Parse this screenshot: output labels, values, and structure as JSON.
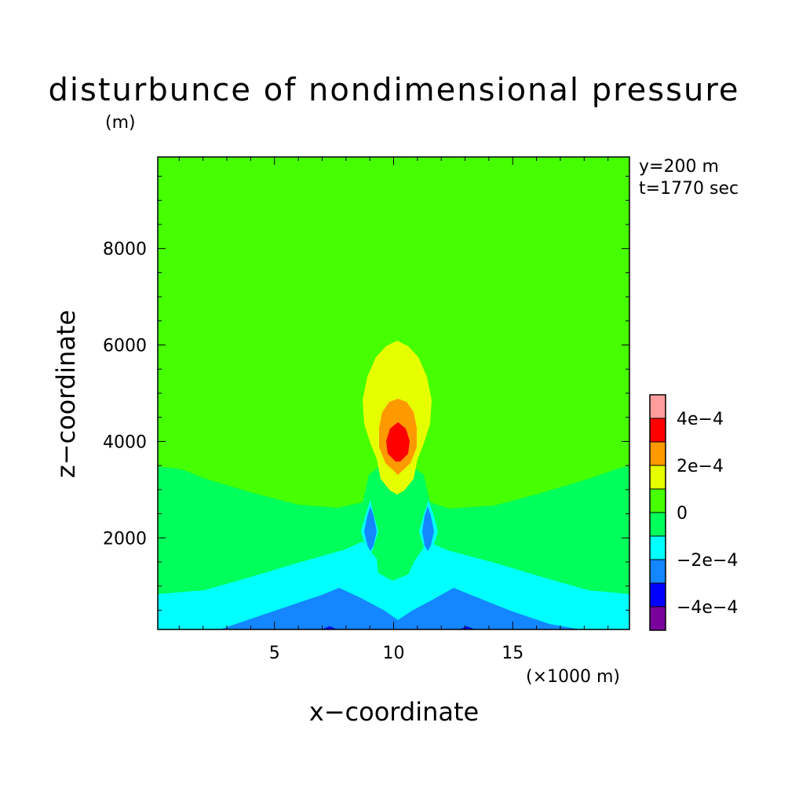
{
  "chart_data": {
    "type": "heatmap",
    "title": "disturbunce of nondimensional pressure",
    "ylabel": "z−coordinate",
    "yunit": "(m)",
    "xlabel": "x−coordinate",
    "xunit": "(×1000 m)",
    "annotations": [
      "y=200 m",
      "t=1770 sec"
    ],
    "xlim": [
      0.1,
      19.9
    ],
    "ylim": [
      100,
      9900
    ],
    "xticks": [
      5,
      10,
      15
    ],
    "xtick_labels": [
      "5",
      "10",
      "15"
    ],
    "yticks": [
      2000,
      4000,
      6000,
      8000
    ],
    "ytick_labels": [
      "2000",
      "4000",
      "6000",
      "8000"
    ],
    "colorbar": {
      "levels": [
        -0.0005,
        -0.0004,
        -0.0003,
        -0.0002,
        -0.0001,
        0,
        0.0001,
        0.0002,
        0.0003,
        0.0004,
        0.0005
      ],
      "labels": [
        "−4e−4",
        "−2e−4",
        "0",
        "2e−4",
        "4e−4"
      ],
      "label_values": [
        -0.0004,
        -0.0002,
        0,
        0.0002,
        0.0004
      ],
      "colors": [
        "#7a009c",
        "#0000ff",
        "#1486ff",
        "#00ffff",
        "#00ff5a",
        "#46ff00",
        "#e6ff00",
        "#ff9900",
        "#ff0000",
        "#ff9c9c"
      ]
    },
    "features": [
      {
        "name": "positive maximum",
        "x": 10.1,
        "z": 3950,
        "value": 0.00035
      },
      {
        "name": "negative minimum (left)",
        "x": 9.0,
        "z": 2450,
        "value": -0.00025
      },
      {
        "name": "negative minimum (right)",
        "x": 11.3,
        "z": 2450,
        "value": -0.00025
      },
      {
        "name": "surface minimum (left)",
        "x": 7.5,
        "z": 100,
        "value": -0.00042
      },
      {
        "name": "surface minimum (right)",
        "x": 13.0,
        "z": 100,
        "value": -0.00042
      }
    ],
    "grid": false,
    "legend_position": "right (colorbar)"
  }
}
